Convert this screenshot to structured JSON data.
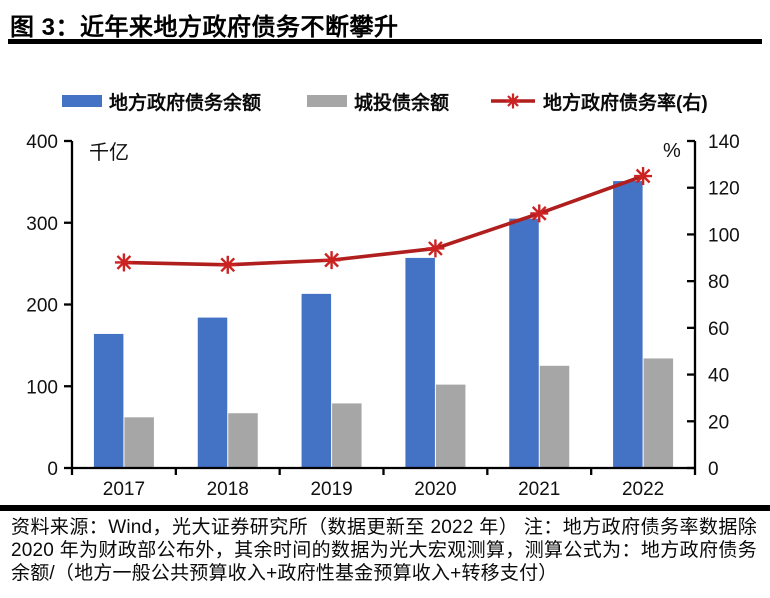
{
  "figure": {
    "title": "图 3：近年来地方政府债务不断攀升"
  },
  "chart_data": {
    "type": "bar",
    "subtype": "grouped bars with overlaid line on secondary axis",
    "categories": [
      "2017",
      "2018",
      "2019",
      "2020",
      "2021",
      "2022"
    ],
    "series": [
      {
        "name": "地方政府债务余额",
        "type": "bar",
        "axis": "left",
        "color": "#4472C4",
        "values": [
          164,
          184,
          213,
          257,
          305,
          351
        ]
      },
      {
        "name": "城投债余额",
        "type": "bar",
        "axis": "left",
        "color": "#A6A6A6",
        "values": [
          62,
          67,
          79,
          102,
          125,
          134
        ]
      },
      {
        "name": "地方政府债务率(右)",
        "type": "line",
        "axis": "right",
        "color": "#B01E1E",
        "marker": "asterisk",
        "marker_color": "#CC2222",
        "values": [
          88,
          87,
          89,
          94,
          109,
          125
        ]
      }
    ],
    "left_axis": {
      "label": "千亿",
      "min": 0,
      "max": 400,
      "step": 100,
      "ticks": [
        "0",
        "100",
        "200",
        "300",
        "400"
      ]
    },
    "right_axis": {
      "label": "%",
      "min": 0,
      "max": 140,
      "step": 20,
      "ticks": [
        "0",
        "20",
        "40",
        "60",
        "80",
        "100",
        "120",
        "140"
      ]
    },
    "legend_position": "top",
    "grid": false,
    "axis_color": "#000000"
  },
  "footer": {
    "note": "资料来源：Wind，光大证券研究所（数据更新至 2022 年） 注：地方政府债务率数据除 2020 年为财政部公布外，其余时间的数据为光大宏观测算，测算公式为：地方政府债务余额/（地方一般公共预算收入+政府性基金预算收入+转移支付）"
  }
}
